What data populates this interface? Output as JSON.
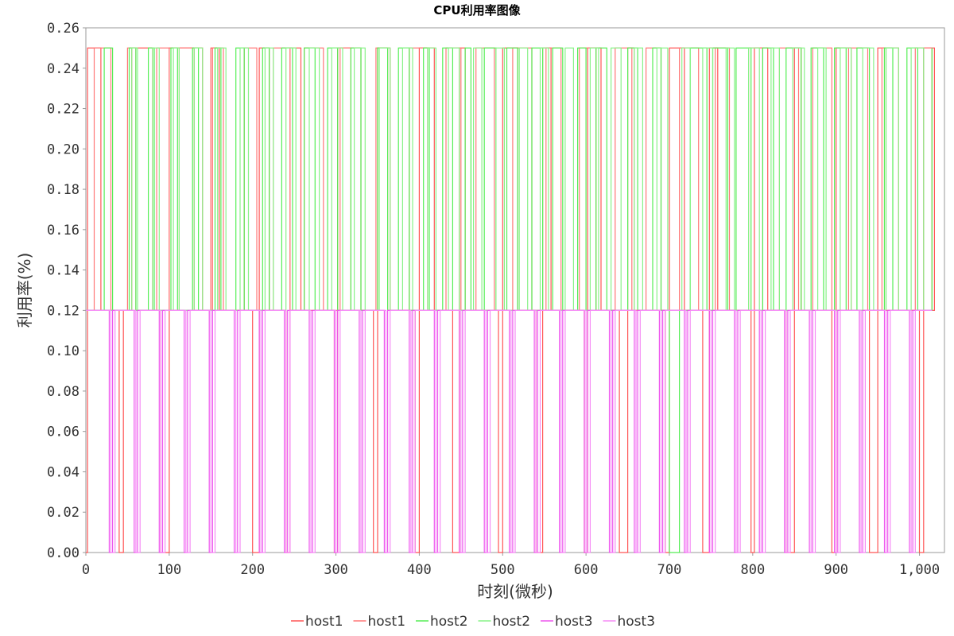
{
  "chart_data": {
    "type": "line",
    "title": "CPU利用率图像",
    "xlabel": "时刻(微秒)",
    "ylabel": "利用率(%)",
    "xlim": [
      0,
      1030
    ],
    "ylim": [
      0,
      0.26
    ],
    "xticks": [
      0,
      100,
      200,
      300,
      400,
      500,
      600,
      700,
      800,
      900,
      1000
    ],
    "xtick_labels": [
      "0",
      "100",
      "200",
      "300",
      "400",
      "500",
      "600",
      "700",
      "800",
      "900",
      "1,000"
    ],
    "yticks": [
      0,
      0.02,
      0.04,
      0.06,
      0.08,
      0.1,
      0.12,
      0.14,
      0.16,
      0.18,
      0.2,
      0.22,
      0.24,
      0.26
    ],
    "ytick_labels": [
      "0.00",
      "0.02",
      "0.04",
      "0.06",
      "0.08",
      "0.10",
      "0.12",
      "0.14",
      "0.16",
      "0.18",
      "0.20",
      "0.22",
      "0.24",
      "0.26"
    ],
    "grid": false,
    "legend_position": "bottom",
    "line_style": "step",
    "series": [
      {
        "name": "host1",
        "color": "#ff5555",
        "x": [
          0,
          2,
          18,
          40,
          45,
          55,
          80,
          90,
          100,
          140,
          150,
          160,
          200,
          208,
          220,
          240,
          245,
          258,
          298,
          302,
          318,
          345,
          350,
          362,
          395,
          400,
          418,
          440,
          448,
          455,
          495,
          500,
          518,
          540,
          548,
          558,
          598,
          602,
          618,
          640,
          650,
          658,
          695,
          700,
          718,
          740,
          748,
          758,
          798,
          802,
          818,
          840,
          850,
          858,
          895,
          900,
          918,
          940,
          950,
          958,
          1000,
          1005,
          1018
        ],
        "y": [
          0,
          0.25,
          0.12,
          0,
          0.12,
          0.25,
          0.12,
          0,
          0.25,
          0.12,
          0.25,
          0.12,
          0,
          0.25,
          0.12,
          0,
          0.25,
          0.12,
          0,
          0.25,
          0.12,
          0,
          0.25,
          0.12,
          0,
          0.25,
          0.12,
          0,
          0.25,
          0.12,
          0,
          0.25,
          0.12,
          0,
          0.25,
          0.12,
          0,
          0.25,
          0.12,
          0,
          0.25,
          0.12,
          0,
          0.25,
          0.12,
          0,
          0.25,
          0.12,
          0,
          0.25,
          0.12,
          0,
          0.25,
          0.12,
          0,
          0.25,
          0.12,
          0,
          0.25,
          0.12,
          0,
          0.25,
          0.12
        ]
      },
      {
        "name": "host1",
        "color": "#ff7777",
        "x": [
          0,
          10,
          30,
          50,
          60,
          85,
          100,
          112,
          130,
          152,
          165,
          190,
          205,
          225,
          245,
          262,
          285,
          305,
          330,
          348,
          365,
          388,
          410,
          432,
          450,
          468,
          490,
          512,
          535,
          552,
          570,
          592,
          612,
          635,
          655,
          672,
          690,
          712,
          735,
          755,
          772,
          795,
          812,
          832,
          855,
          872,
          895,
          915,
          938,
          955,
          975,
          995,
          1015
        ],
        "y": [
          0.12,
          0.25,
          0.12,
          0.25,
          0.12,
          0.25,
          0.12,
          0.25,
          0.12,
          0.25,
          0.12,
          0.25,
          0.12,
          0.25,
          0.12,
          0.25,
          0.12,
          0.25,
          0.12,
          0.25,
          0.12,
          0.25,
          0.12,
          0.25,
          0.12,
          0.25,
          0.12,
          0.25,
          0.12,
          0.25,
          0.12,
          0.25,
          0.12,
          0.25,
          0.12,
          0.25,
          0.12,
          0.25,
          0.12,
          0.25,
          0.12,
          0.25,
          0.12,
          0.25,
          0.12,
          0.25,
          0.12,
          0.25,
          0.12,
          0.25,
          0.12,
          0.25,
          0.12
        ]
      },
      {
        "name": "host2",
        "color": "#55ee55",
        "x": [
          0,
          22,
          32,
          52,
          60,
          75,
          82,
          102,
          110,
          128,
          135,
          155,
          162,
          180,
          190,
          212,
          220,
          235,
          248,
          262,
          275,
          290,
          302,
          318,
          330,
          350,
          362,
          375,
          388,
          405,
          412,
          428,
          440,
          455,
          462,
          478,
          492,
          505,
          518,
          535,
          548,
          560,
          572,
          590,
          600,
          612,
          625,
          650,
          662,
          680,
          690,
          700,
          712,
          725,
          745,
          752,
          770,
          780,
          798,
          812,
          825,
          840,
          858,
          870,
          885,
          898,
          912,
          925,
          940,
          958,
          968,
          985,
          998,
          1015
        ],
        "y": [
          0.12,
          0.25,
          0.12,
          0.25,
          0.12,
          0.25,
          0.12,
          0.25,
          0.12,
          0.25,
          0.12,
          0.25,
          0.12,
          0.25,
          0.12,
          0.25,
          0.12,
          0.25,
          0.12,
          0.25,
          0.12,
          0.25,
          0.12,
          0.25,
          0.12,
          0.25,
          0.12,
          0.25,
          0.12,
          0.25,
          0.12,
          0.25,
          0.12,
          0.25,
          0.12,
          0.25,
          0.12,
          0.25,
          0.12,
          0.25,
          0.12,
          0.25,
          0.12,
          0.25,
          0.12,
          0.25,
          0.12,
          0.25,
          0.12,
          0.25,
          0.12,
          0,
          0.12,
          0.25,
          0.12,
          0.25,
          0.12,
          0.25,
          0.12,
          0.25,
          0.12,
          0.25,
          0.12,
          0.25,
          0.12,
          0.25,
          0.12,
          0.25,
          0.12,
          0.25,
          0.12,
          0.25,
          0.12,
          0.25
        ]
      },
      {
        "name": "host2",
        "color": "#88f288",
        "x": [
          0,
          55,
          62,
          80,
          88,
          105,
          112,
          130,
          140,
          158,
          168,
          185,
          195,
          215,
          225,
          240,
          252,
          268,
          280,
          295,
          308,
          322,
          335,
          352,
          365,
          380,
          392,
          410,
          420,
          435,
          448,
          465,
          475,
          492,
          502,
          520,
          530,
          545,
          555,
          575,
          585,
          605,
          615,
          630,
          642,
          658,
          668,
          685,
          698,
          715,
          725,
          740,
          752,
          768,
          778,
          795,
          808,
          822,
          832,
          848,
          862,
          878,
          888,
          905,
          918,
          932,
          945,
          960,
          975,
          990,
          1005
        ],
        "y": [
          0.12,
          0.25,
          0.12,
          0.25,
          0.12,
          0.25,
          0.12,
          0.25,
          0.12,
          0.25,
          0.12,
          0.25,
          0.12,
          0.25,
          0.12,
          0.25,
          0.12,
          0.25,
          0.12,
          0.25,
          0.12,
          0.25,
          0.12,
          0.25,
          0.12,
          0.25,
          0.12,
          0.25,
          0.12,
          0.25,
          0.12,
          0.25,
          0.12,
          0.25,
          0.12,
          0.25,
          0.12,
          0.25,
          0.12,
          0.25,
          0.12,
          0.25,
          0.12,
          0.25,
          0.12,
          0.25,
          0.12,
          0.25,
          0.12,
          0.25,
          0.12,
          0.25,
          0.12,
          0.25,
          0.12,
          0.25,
          0.12,
          0.25,
          0.12,
          0.25,
          0.12,
          0.25,
          0.12,
          0.25,
          0.12,
          0.25,
          0.12,
          0.25,
          0.12,
          0.25,
          0.12
        ]
      },
      {
        "name": "host3",
        "color": "#ee55ee",
        "x": [
          0,
          28,
          32,
          58,
          62,
          88,
          92,
          118,
          122,
          148,
          152,
          178,
          182,
          208,
          212,
          238,
          242,
          268,
          272,
          298,
          302,
          328,
          332,
          358,
          362,
          388,
          392,
          418,
          422,
          448,
          452,
          478,
          482,
          508,
          512,
          538,
          542,
          568,
          572,
          598,
          602,
          628,
          632,
          658,
          662,
          688,
          692,
          718,
          722,
          748,
          752,
          778,
          782,
          808,
          812,
          838,
          842,
          868,
          872,
          898,
          902,
          928,
          932,
          958,
          962,
          988,
          992
        ],
        "y": [
          0.12,
          0,
          0.12,
          0,
          0.12,
          0,
          0.12,
          0,
          0.12,
          0,
          0.12,
          0,
          0.12,
          0,
          0.12,
          0,
          0.12,
          0,
          0.12,
          0,
          0.12,
          0,
          0.12,
          0,
          0.12,
          0,
          0.12,
          0,
          0.12,
          0,
          0.12,
          0,
          0.12,
          0,
          0.12,
          0,
          0.12,
          0,
          0.12,
          0,
          0.12,
          0,
          0.12,
          0,
          0.12,
          0,
          0.12,
          0,
          0.12,
          0,
          0.12,
          0,
          0.12,
          0,
          0.12,
          0,
          0.12,
          0,
          0.12,
          0,
          0.12,
          0,
          0.12,
          0,
          0.12,
          0,
          0.12
        ]
      },
      {
        "name": "host3",
        "color": "#f58af5",
        "x": [
          0,
          30,
          35,
          60,
          65,
          90,
          95,
          120,
          125,
          150,
          155,
          180,
          185,
          210,
          215,
          240,
          245,
          270,
          275,
          300,
          305,
          330,
          335,
          360,
          365,
          390,
          395,
          420,
          425,
          450,
          455,
          480,
          485,
          510,
          515,
          540,
          545,
          570,
          575,
          600,
          605,
          630,
          635,
          660,
          665,
          690,
          695,
          720,
          725,
          750,
          755,
          780,
          785,
          810,
          815,
          840,
          845,
          870,
          875,
          900,
          905,
          930,
          935,
          960,
          965,
          990,
          995
        ],
        "y": [
          0.12,
          0,
          0.12,
          0,
          0.12,
          0,
          0.12,
          0,
          0.12,
          0,
          0.12,
          0,
          0.12,
          0,
          0.12,
          0,
          0.12,
          0,
          0.12,
          0,
          0.12,
          0,
          0.12,
          0,
          0.12,
          0,
          0.12,
          0,
          0.12,
          0,
          0.12,
          0,
          0.12,
          0,
          0.12,
          0,
          0.12,
          0,
          0.12,
          0,
          0.12,
          0,
          0.12,
          0,
          0.12,
          0,
          0.12,
          0,
          0.12,
          0,
          0.12,
          0,
          0.12,
          0,
          0.12,
          0,
          0.12,
          0,
          0.12,
          0,
          0.12,
          0,
          0.12,
          0,
          0.12,
          0,
          0.12
        ]
      }
    ]
  }
}
